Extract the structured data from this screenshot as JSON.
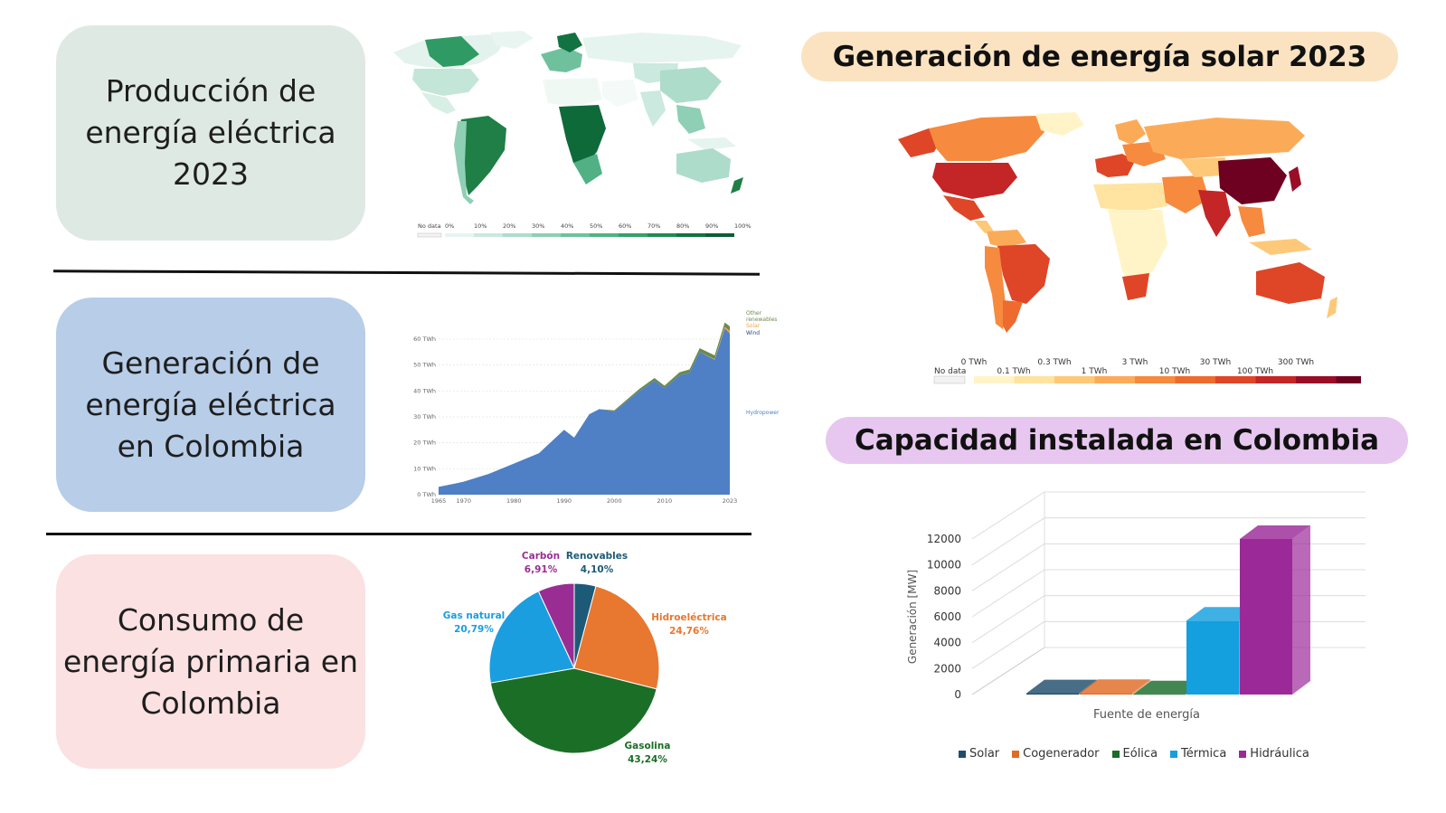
{
  "cards": {
    "c1": [
      "Producción de",
      "energía eléctrica",
      "2023"
    ],
    "c2": [
      "Generación de",
      "energía eléctrica",
      "en Colombia"
    ],
    "c3": [
      "Consumo de",
      "energía primaria en",
      "Colombia"
    ]
  },
  "solar_title": "Generación de energía solar 2023",
  "capacity_title": "Capacidad instalada en Colombia",
  "map1_legend": [
    "No data",
    "0%",
    "10%",
    "20%",
    "30%",
    "40%",
    "50%",
    "60%",
    "70%",
    "80%",
    "90%",
    "100%"
  ],
  "map1_colors": [
    "#f3f3f3",
    "#e6f4ef",
    "#cbe9de",
    "#aedccb",
    "#8fcfb5",
    "#6fc19e",
    "#51b184",
    "#36a06b",
    "#228a55",
    "#127242",
    "#0b5e34"
  ],
  "map2_legend_top": [
    "0 TWh",
    "0.3 TWh",
    "3 TWh",
    "30 TWh",
    "300 TWh"
  ],
  "map2_legend_bottom": [
    "No data",
    "0.1 TWh",
    "1 TWh",
    "10 TWh",
    "100 TWh"
  ],
  "map2_colors": [
    "#fff4c8",
    "#ffe3a0",
    "#fdc979",
    "#fbab58",
    "#f68a3e",
    "#ee6a2e",
    "#de4627",
    "#c42527",
    "#9a0d26",
    "#6e0021"
  ],
  "chart_data": [
    {
      "type": "area",
      "x": [
        1965,
        1970,
        1975,
        1980,
        1985,
        1990,
        1992,
        1995,
        1997,
        2000,
        2005,
        2008,
        2010,
        2013,
        2015,
        2017,
        2020,
        2022,
        2023
      ],
      "series": [
        {
          "name": "Hydropower",
          "values": [
            3,
            5,
            8,
            12,
            16,
            25,
            22,
            31,
            33,
            32,
            40,
            44,
            41,
            46,
            47,
            55,
            52,
            64,
            62
          ]
        },
        {
          "name": "Wind",
          "values": [
            0,
            0,
            0,
            0,
            0,
            0,
            0,
            0,
            0,
            0,
            0,
            0,
            0,
            0,
            0,
            0,
            0,
            0.1,
            0.1
          ]
        },
        {
          "name": "Solar",
          "values": [
            0,
            0,
            0,
            0,
            0,
            0,
            0,
            0,
            0,
            0,
            0,
            0,
            0,
            0,
            0,
            0,
            0.2,
            0.6,
            1
          ]
        },
        {
          "name": "Other renewables",
          "values": [
            0,
            0,
            0,
            0,
            0,
            0,
            0,
            0,
            0,
            0.5,
            0.8,
            1,
            1,
            1.2,
            1.3,
            1.5,
            1.5,
            1.7,
            1.8
          ]
        }
      ],
      "series_labels": [
        "Other",
        "renewables",
        "Solar",
        "Wind",
        "Hydropower"
      ],
      "yticks": [
        "0 TWh",
        "10 TWh",
        "20 TWh",
        "30 TWh",
        "40 TWh",
        "50 TWh",
        "60 TWh"
      ],
      "xticks": [
        "1965",
        "1970",
        "1980",
        "1990",
        "2000",
        "2010",
        "2023"
      ],
      "ylim": [
        0,
        68
      ],
      "xlim": [
        1965,
        2023
      ],
      "colors": {
        "Hydropower": "#4f7fc4",
        "Wind": "#2c4a80",
        "Solar": "#f0a23c",
        "Other renewables": "#6a8a4e"
      }
    },
    {
      "type": "pie",
      "labels": [
        "Renovables",
        "Hidroeléctrica",
        "Gasolina",
        "Gas natural",
        "Carbón"
      ],
      "values": [
        4.1,
        24.76,
        43.24,
        20.79,
        6.91
      ],
      "value_labels": [
        "4,10%",
        "24,76%",
        "43,24%",
        "20,79%",
        "6,91%"
      ],
      "colors": [
        "#1d5a78",
        "#e8772f",
        "#1b6e26",
        "#1a9ee0",
        "#9a2d94"
      ]
    },
    {
      "type": "bar",
      "categories": [
        "Solar",
        "Cogenerador",
        "Eólica",
        "Térmica",
        "Hidráulica"
      ],
      "values": [
        100,
        120,
        20,
        5700,
        12000
      ],
      "xlabel": "Fuente de energía",
      "ylabel": "Generación [MW]",
      "yticks": [
        "0",
        "2000",
        "4000",
        "6000",
        "8000",
        "10000",
        "12000"
      ],
      "ylim": [
        0,
        12000
      ],
      "colors": [
        "#1f4e6b",
        "#e06b25",
        "#1b6b2a",
        "#149fde",
        "#9b2a98"
      ]
    }
  ]
}
